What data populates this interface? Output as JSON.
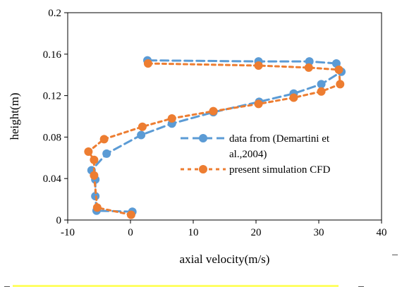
{
  "chart_data": {
    "type": "scatter",
    "xlabel": "axial velocity(m/s)",
    "ylabel": "height(m)",
    "xlim": [
      -10,
      40
    ],
    "ylim": [
      0,
      0.2
    ],
    "x_ticks": [
      "-10",
      "0",
      "10",
      "20",
      "30",
      "40"
    ],
    "y_ticks": [
      "0",
      "0.04",
      "0.08",
      "0.12",
      "0.16",
      "0.2"
    ],
    "grid": false,
    "legend_position": "right",
    "series": [
      {
        "name": "data from (Demartini et al.,2004)",
        "legend_lines": [
          "data from (Demartini et",
          "al.,2004)"
        ],
        "color": "#5b9bd5",
        "style": "dashed-with-markers",
        "points": [
          {
            "x": 0.3,
            "y": 0.008
          },
          {
            "x": -5.4,
            "y": 0.009
          },
          {
            "x": -5.6,
            "y": 0.023
          },
          {
            "x": -5.6,
            "y": 0.039
          },
          {
            "x": -6.2,
            "y": 0.048
          },
          {
            "x": -3.8,
            "y": 0.064
          },
          {
            "x": 1.7,
            "y": 0.082
          },
          {
            "x": 6.6,
            "y": 0.093
          },
          {
            "x": 13.2,
            "y": 0.104
          },
          {
            "x": 20.5,
            "y": 0.114
          },
          {
            "x": 26.0,
            "y": 0.122
          },
          {
            "x": 30.4,
            "y": 0.131
          },
          {
            "x": 33.6,
            "y": 0.143
          },
          {
            "x": 32.8,
            "y": 0.151
          },
          {
            "x": 28.5,
            "y": 0.153
          },
          {
            "x": 20.4,
            "y": 0.153
          },
          {
            "x": 2.7,
            "y": 0.154
          }
        ]
      },
      {
        "name": "present simulation CFD",
        "legend_lines": [
          "present simulation CFD"
        ],
        "color": "#ed7d31",
        "style": "dotted-with-markers",
        "points": [
          {
            "x": 0.1,
            "y": 0.005
          },
          {
            "x": -5.3,
            "y": 0.012
          },
          {
            "x": -5.8,
            "y": 0.043
          },
          {
            "x": -5.8,
            "y": 0.058
          },
          {
            "x": -6.7,
            "y": 0.066
          },
          {
            "x": -4.2,
            "y": 0.078
          },
          {
            "x": 1.9,
            "y": 0.09
          },
          {
            "x": 6.6,
            "y": 0.098
          },
          {
            "x": 13.2,
            "y": 0.105
          },
          {
            "x": 20.4,
            "y": 0.112
          },
          {
            "x": 26.0,
            "y": 0.118
          },
          {
            "x": 30.4,
            "y": 0.124
          },
          {
            "x": 33.4,
            "y": 0.131
          },
          {
            "x": 33.2,
            "y": 0.145
          },
          {
            "x": 28.4,
            "y": 0.147
          },
          {
            "x": 20.4,
            "y": 0.149
          },
          {
            "x": 2.8,
            "y": 0.151
          }
        ]
      }
    ]
  }
}
